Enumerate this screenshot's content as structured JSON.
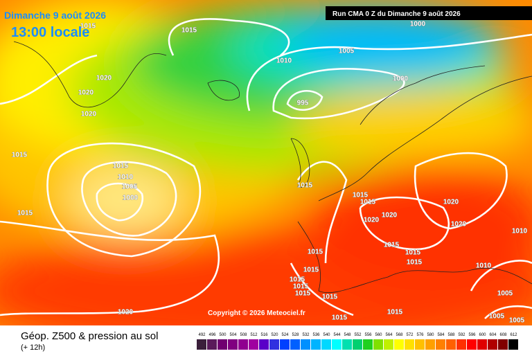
{
  "header": {
    "date": "Dimanche 9 août 2026",
    "time": "13:00 locale",
    "run": "Run CMA 0 Z du Dimanche 9 août 2026",
    "copyright": "Copyright © 2026 Meteociel.fr"
  },
  "footer": {
    "title": "Géop. Z500 & pression au sol",
    "subtitle": "(+ 12h)"
  },
  "scale": {
    "labels": [
      "492",
      "496",
      "500",
      "504",
      "508",
      "512",
      "516",
      "520",
      "524",
      "528",
      "532",
      "536",
      "540",
      "544",
      "548",
      "552",
      "556",
      "560",
      "564",
      "568",
      "572",
      "576",
      "580",
      "584",
      "588",
      "592",
      "596",
      "600",
      "604",
      "608",
      "612"
    ],
    "colors": [
      "#3b1f3b",
      "#5a1a5a",
      "#700070",
      "#800080",
      "#900090",
      "#a000a0",
      "#5a00c8",
      "#3030e0",
      "#0040ff",
      "#0060ff",
      "#0090ff",
      "#00b4ff",
      "#00d8ff",
      "#00ffff",
      "#00e0b0",
      "#00d070",
      "#20d020",
      "#80e000",
      "#c0f000",
      "#ffff00",
      "#ffe000",
      "#ffc000",
      "#ffa000",
      "#ff8000",
      "#ff6000",
      "#ff3000",
      "#ff0000",
      "#e00000",
      "#b00000",
      "#800000",
      "#000000"
    ]
  },
  "isobar_labels": [
    "1015",
    "1015",
    "1000",
    "1005",
    "1010",
    "1020",
    "1000",
    "1020",
    "995",
    "1020",
    "1015",
    "1015",
    "1010",
    "1005",
    "1000",
    "1015",
    "1015",
    "1015",
    "1020",
    "1015",
    "1020",
    "1020",
    "1020",
    "1010",
    "1015",
    "1015",
    "1015",
    "1015",
    "1010",
    "1015",
    "1015",
    "1015",
    "1015",
    "1015",
    "1005",
    "1020",
    "1015",
    "1015",
    "1005",
    "1005"
  ]
}
